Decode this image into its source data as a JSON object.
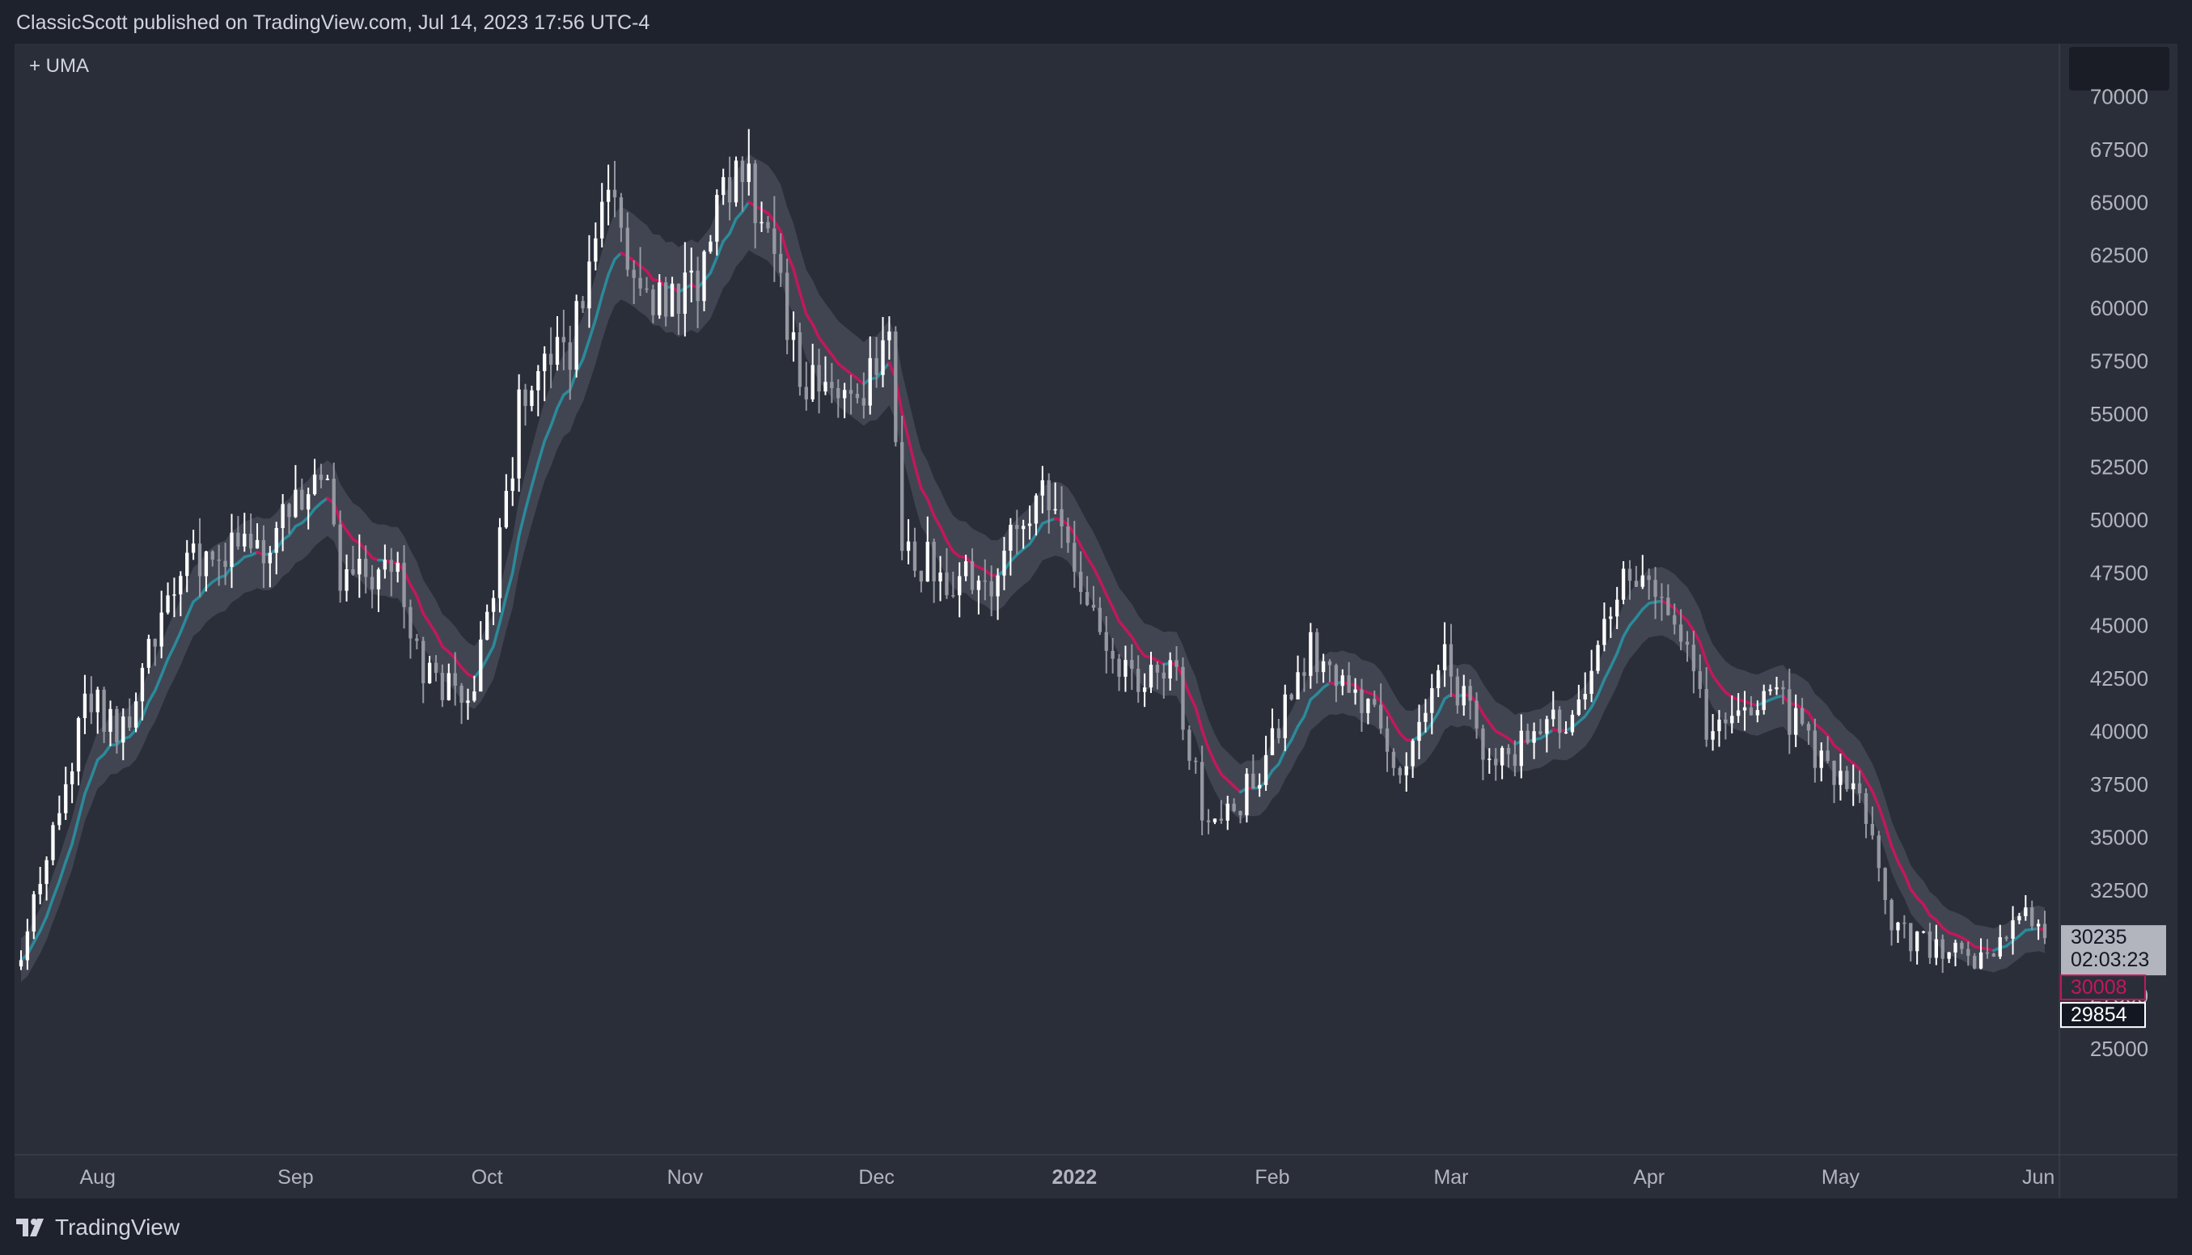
{
  "header": {
    "published": "ClassicScott published on TradingView.com, Jul 14, 2023 17:56 UTC-4"
  },
  "legend": {
    "label": "+ UMA"
  },
  "footer": {
    "brand": "TradingView"
  },
  "colors": {
    "background": "#2a2e39",
    "frame": "#1e222d",
    "candle_up": "#ffffff",
    "candle_down": "#9598a1",
    "uma_bull": "#2b8a9a",
    "uma_bear": "#c2185b",
    "band": "#4a4e5a",
    "axis_text": "#b2b5be",
    "price_tag_bg": "#b2b5be"
  },
  "chart_data": {
    "type": "candlestick",
    "title": "",
    "indicator": "UMA",
    "y_ticks": [
      25000,
      27500,
      30000,
      32500,
      35000,
      37500,
      40000,
      42500,
      45000,
      47500,
      50000,
      52500,
      55000,
      57500,
      60000,
      62500,
      65000,
      67500,
      70000
    ],
    "x_labels": [
      {
        "label": "Aug",
        "bold": false
      },
      {
        "label": "Sep",
        "bold": false
      },
      {
        "label": "Oct",
        "bold": false
      },
      {
        "label": "Nov",
        "bold": false
      },
      {
        "label": "Dec",
        "bold": false
      },
      {
        "label": "2022",
        "bold": true
      },
      {
        "label": "Feb",
        "bold": false
      },
      {
        "label": "Mar",
        "bold": false
      },
      {
        "label": "Apr",
        "bold": false
      },
      {
        "label": "May",
        "bold": false
      },
      {
        "label": "Jun",
        "bold": false
      }
    ],
    "x_range": [
      "2021-07-20",
      "2022-06-02"
    ],
    "ylim": [
      20000,
      72500
    ],
    "close_path": [
      [
        "2021-07-20",
        29800
      ],
      [
        "2021-07-24",
        33500
      ],
      [
        "2021-07-30",
        41500
      ],
      [
        "2021-08-05",
        40000
      ],
      [
        "2021-08-14",
        47500
      ],
      [
        "2021-08-21",
        48500
      ],
      [
        "2021-08-28",
        49000
      ],
      [
        "2021-09-06",
        52000
      ],
      [
        "2021-09-08",
        46500
      ],
      [
        "2021-09-16",
        48000
      ],
      [
        "2021-09-21",
        43000
      ],
      [
        "2021-09-29",
        41500
      ],
      [
        "2021-10-06",
        55000
      ],
      [
        "2021-10-14",
        58000
      ],
      [
        "2021-10-20",
        65500
      ],
      [
        "2021-10-26",
        60500
      ],
      [
        "2021-11-04",
        61500
      ],
      [
        "2021-11-09",
        67500
      ],
      [
        "2021-11-12",
        64500
      ],
      [
        "2021-11-19",
        57000
      ],
      [
        "2021-11-26",
        55000
      ],
      [
        "2021-12-03",
        58000
      ],
      [
        "2021-12-05",
        49000
      ],
      [
        "2021-12-13",
        47000
      ],
      [
        "2021-12-20",
        47500
      ],
      [
        "2021-12-27",
        51500
      ],
      [
        "2022-01-03",
        47000
      ],
      [
        "2022-01-10",
        42000
      ],
      [
        "2022-01-17",
        42500
      ],
      [
        "2022-01-22",
        35000
      ],
      [
        "2022-01-31",
        38500
      ],
      [
        "2022-02-07",
        44000
      ],
      [
        "2022-02-14",
        42500
      ],
      [
        "2022-02-21",
        37500
      ],
      [
        "2022-02-28",
        43500
      ],
      [
        "2022-03-07",
        38500
      ],
      [
        "2022-03-14",
        39500
      ],
      [
        "2022-03-21",
        41500
      ],
      [
        "2022-03-28",
        47500
      ],
      [
        "2022-04-04",
        46000
      ],
      [
        "2022-04-11",
        39700
      ],
      [
        "2022-04-21",
        41500
      ],
      [
        "2022-04-30",
        38000
      ],
      [
        "2022-05-05",
        36000
      ],
      [
        "2022-05-09",
        31000
      ],
      [
        "2022-05-16",
        29500
      ],
      [
        "2022-05-25",
        29500
      ],
      [
        "2022-05-31",
        31500
      ],
      [
        "2022-06-02",
        30235
      ]
    ],
    "volatility": 0.035,
    "uma_period": 9,
    "last_price": 30235,
    "countdown": "02:03:23",
    "uma_value": 30008,
    "prev_close": 29854,
    "price_scale_top_box": ""
  }
}
